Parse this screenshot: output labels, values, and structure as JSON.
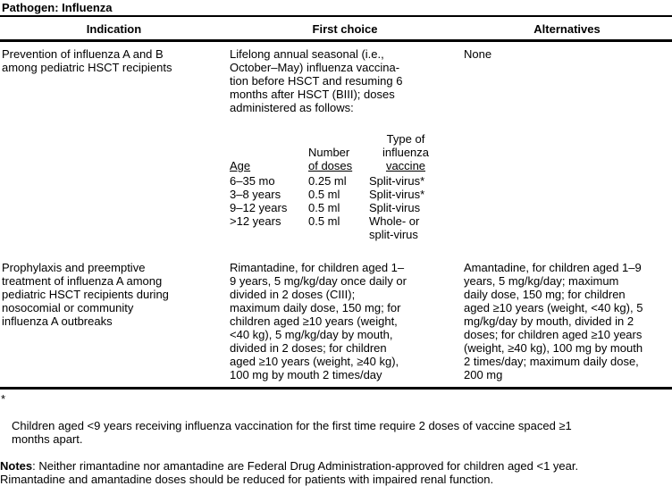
{
  "page": {
    "title": "Pathogen: Influenza"
  },
  "table": {
    "columns": [
      "Indication",
      "First choice",
      "Alternatives"
    ],
    "rows": [
      {
        "indication": "Prevention of influenza A and B\namong pediatric HSCT recipients",
        "first_choice": "Lifelong annual seasonal (i.e.,\nOctober–May) influenza vaccina-\ntion before HSCT and resuming 6\nmonths after HSCT (BIII); doses\nadministered as follows:",
        "alternatives": "None"
      },
      {
        "indication": "Prophylaxis and preemptive\ntreatment of influenza A among\npediatric HSCT recipients during\nnosocomial or community\ninfluenza A outbreaks",
        "first_choice": "Rimantadine, for children aged 1–\n9 years, 5 mg/kg/day once daily or\ndivided in 2 doses (CIII);\nmaximum daily dose, 150 mg; for\nchildren aged ≥10 years (weight,\n<40 kg), 5 mg/kg/day by mouth,\ndivided in 2 doses; for children\naged ≥10 years (weight, ≥40 kg),\n100 mg by mouth 2 times/day",
        "alternatives": "Amantadine, for children aged 1–9\nyears, 5 mg/kg/day; maximum\ndaily dose, 150 mg; for children\naged ≥10 years (weight, <40 kg), 5\nmg/kg/day by mouth, divided in 2\ndoses; for children aged ≥10 years\n(weight, ≥40 kg), 100 mg by mouth\n2 times/day; maximum daily dose,\n200 mg"
      }
    ]
  },
  "dose_table": {
    "headers": {
      "age": "Age",
      "doses_top": "Number",
      "doses_bottom": "of doses",
      "vaccine_top": "Type of",
      "vaccine_mid": "influenza",
      "vaccine_bottom": "vaccine"
    },
    "rows": [
      {
        "age": "6–35 mo",
        "doses": "0.25 ml",
        "vaccine": "Split-virus*"
      },
      {
        "age": "3–8 years",
        "doses": "0.5 ml",
        "vaccine": "Split-virus*"
      },
      {
        "age": "9–12 years",
        "doses": "0.5 ml",
        "vaccine": "Split-virus"
      },
      {
        "age": ">12 years",
        "doses": "0.5 ml",
        "vaccine": "Whole- or\nsplit-virus"
      }
    ]
  },
  "footnotes": {
    "asterisk_marker": "*",
    "asterisk_text": "Children aged <9 years receiving influenza vaccination for the first time require 2 doses of vaccine spaced ≥1\nmonths apart.",
    "notes_label": "Notes",
    "notes_text": ": Neither rimantadine nor amantadine are Federal Drug Administration-approved for children aged <1 year.\nRimantadine and amantadine doses should be reduced for patients with impaired renal function."
  }
}
